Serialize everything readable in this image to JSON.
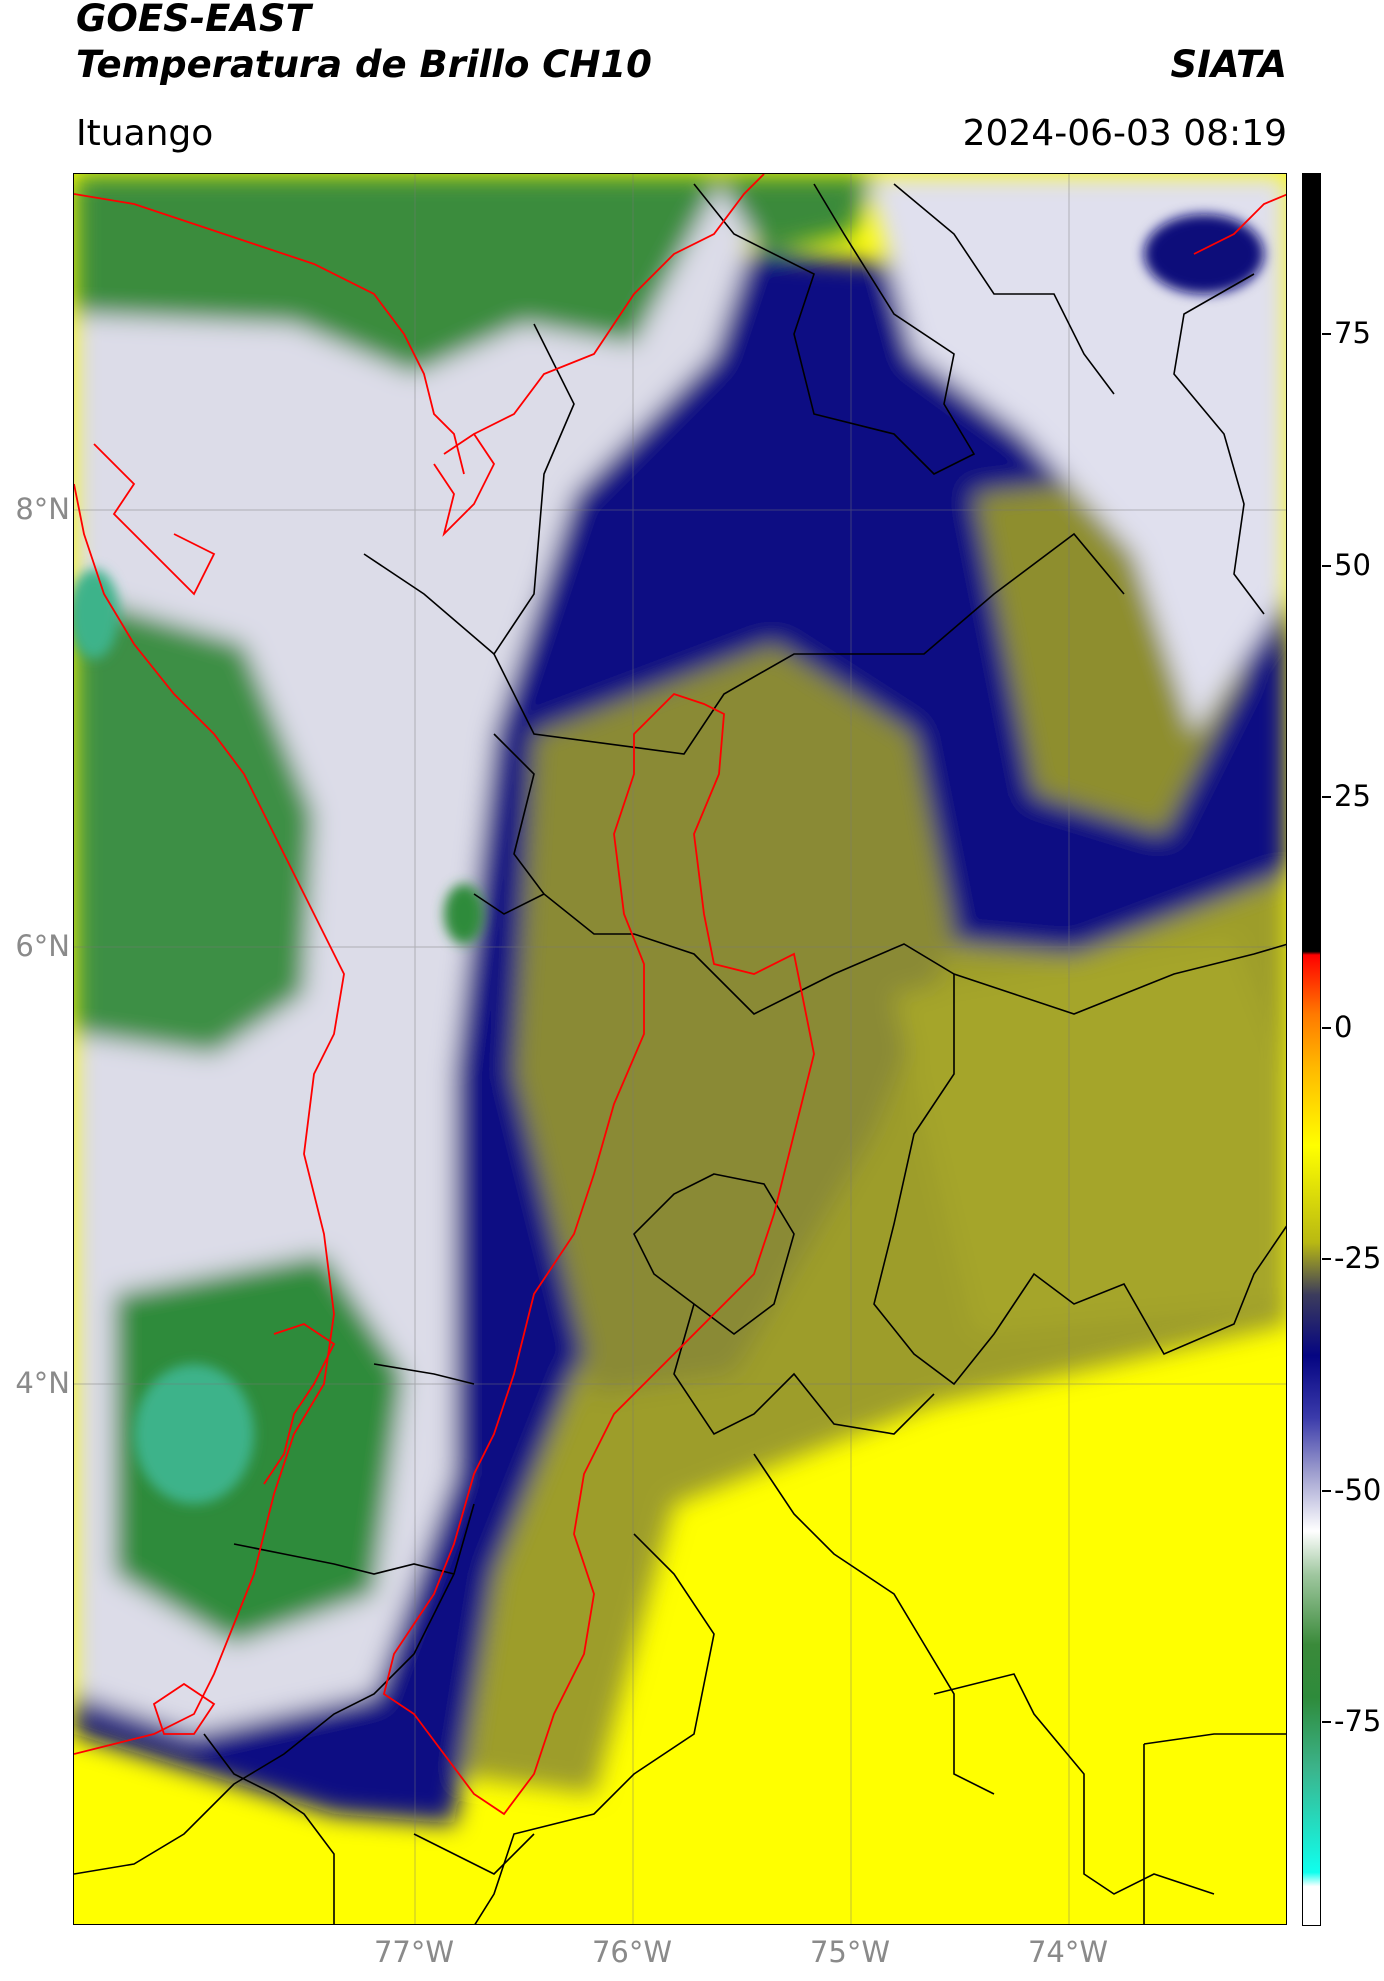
{
  "header": {
    "satellite": "GOES-EAST",
    "product": "Temperatura de Brillo CH10",
    "institution": "SIATA",
    "location": "Ituango",
    "datetime": "2024-06-03 08:19"
  },
  "map": {
    "y_ticks": [
      "8°N",
      "6°N",
      "4°N"
    ],
    "x_ticks": [
      "77°W",
      "76°W",
      "75°W",
      "74°W"
    ],
    "grid": true,
    "colors": {
      "yellow": "#ffff00",
      "olive": "#9d9d2a",
      "navy": "#080883",
      "white": "#ffffff",
      "green": "#2f8b3a",
      "teal": "#3cb38a",
      "border_national": "#000000",
      "border_highlight": "#ff0000"
    }
  },
  "colorbar": {
    "ticks": [
      "75",
      "50",
      "25",
      "0",
      "-25",
      "-50",
      "-75"
    ]
  }
}
